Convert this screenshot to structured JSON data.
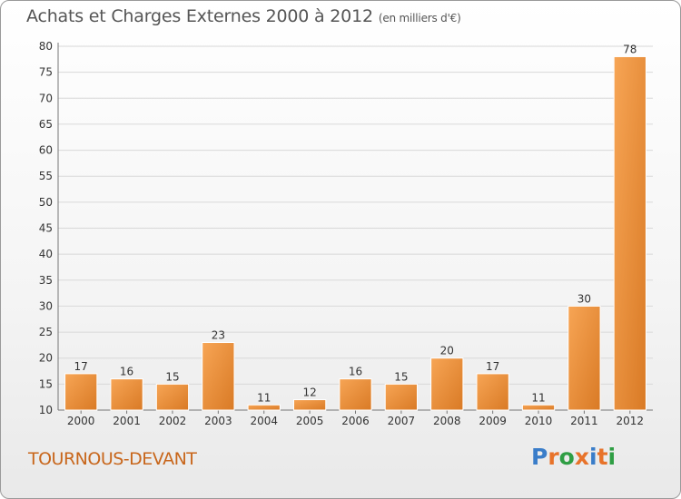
{
  "header": {
    "title": "Achats et Charges Externes 2000 à 2012",
    "subtitle": "(en milliers d'€)"
  },
  "footer": {
    "town": "TOURNOUS-DEVANT",
    "logo_text": "Proxiti",
    "logo_colors": [
      "#3a7dc9",
      "#e8732a",
      "#2f9e44",
      "#e8732a",
      "#3a7dc9",
      "#e8732a",
      "#2f9e44"
    ]
  },
  "colors": {
    "bar_light": "#f7a555",
    "bar_dark": "#d97a25",
    "grid": "#d8d8d8",
    "axis_text": "#333333",
    "title": "#555555",
    "town": "#c8661b"
  },
  "chart_data": {
    "type": "bar",
    "title": "Achats et Charges Externes 2000 à 2012",
    "subtitle": "(en milliers d'€)",
    "categories": [
      "2000",
      "2001",
      "2002",
      "2003",
      "2004",
      "2005",
      "2006",
      "2007",
      "2008",
      "2009",
      "2010",
      "2011",
      "2012"
    ],
    "values": [
      17,
      16,
      15,
      23,
      11,
      12,
      16,
      15,
      20,
      17,
      11,
      30,
      78
    ],
    "ylim": [
      10,
      80
    ],
    "yticks": [
      10,
      15,
      20,
      25,
      30,
      35,
      40,
      45,
      50,
      55,
      60,
      65,
      70,
      75,
      80
    ],
    "grid": true,
    "data_labels": true,
    "xlabel": "",
    "ylabel": ""
  }
}
